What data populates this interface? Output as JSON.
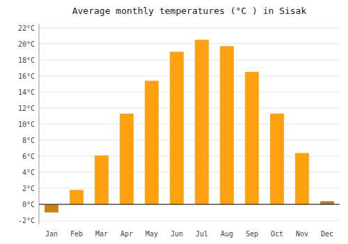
{
  "chart_data": {
    "type": "bar",
    "title": "Average monthly temperatures (°C ) in Sisak",
    "categories": [
      "Jan",
      "Feb",
      "Mar",
      "Apr",
      "May",
      "Jun",
      "Jul",
      "Aug",
      "Sep",
      "Oct",
      "Nov",
      "Dec"
    ],
    "values": [
      -1.0,
      1.8,
      6.1,
      11.3,
      15.4,
      19.0,
      20.5,
      19.7,
      16.5,
      11.3,
      6.4,
      0.4
    ],
    "colors": [
      "#CC8010",
      "#FFA010",
      "#FFA010",
      "#FFA010",
      "#FFA010",
      "#FFA010",
      "#FFA010",
      "#FFA010",
      "#FFA010",
      "#FFA010",
      "#FFA010",
      "#B08030"
    ],
    "ylim": [
      -2.5,
      22.5
    ],
    "yticks": [
      {
        "value": -2,
        "label": "-2°C"
      },
      {
        "value": 0,
        "label": "0°C"
      },
      {
        "value": 2,
        "label": "2°C"
      },
      {
        "value": 4,
        "label": "4°C"
      },
      {
        "value": 6,
        "label": "6°C"
      },
      {
        "value": 8,
        "label": "8°C"
      },
      {
        "value": 10,
        "label": "10°C"
      },
      {
        "value": 12,
        "label": "12°C"
      },
      {
        "value": 14,
        "label": "14°C"
      },
      {
        "value": 16,
        "label": "16°C"
      },
      {
        "value": 18,
        "label": "18°C"
      },
      {
        "value": 20,
        "label": "20°C"
      },
      {
        "value": 22,
        "label": "22°C"
      }
    ],
    "grid": true
  }
}
